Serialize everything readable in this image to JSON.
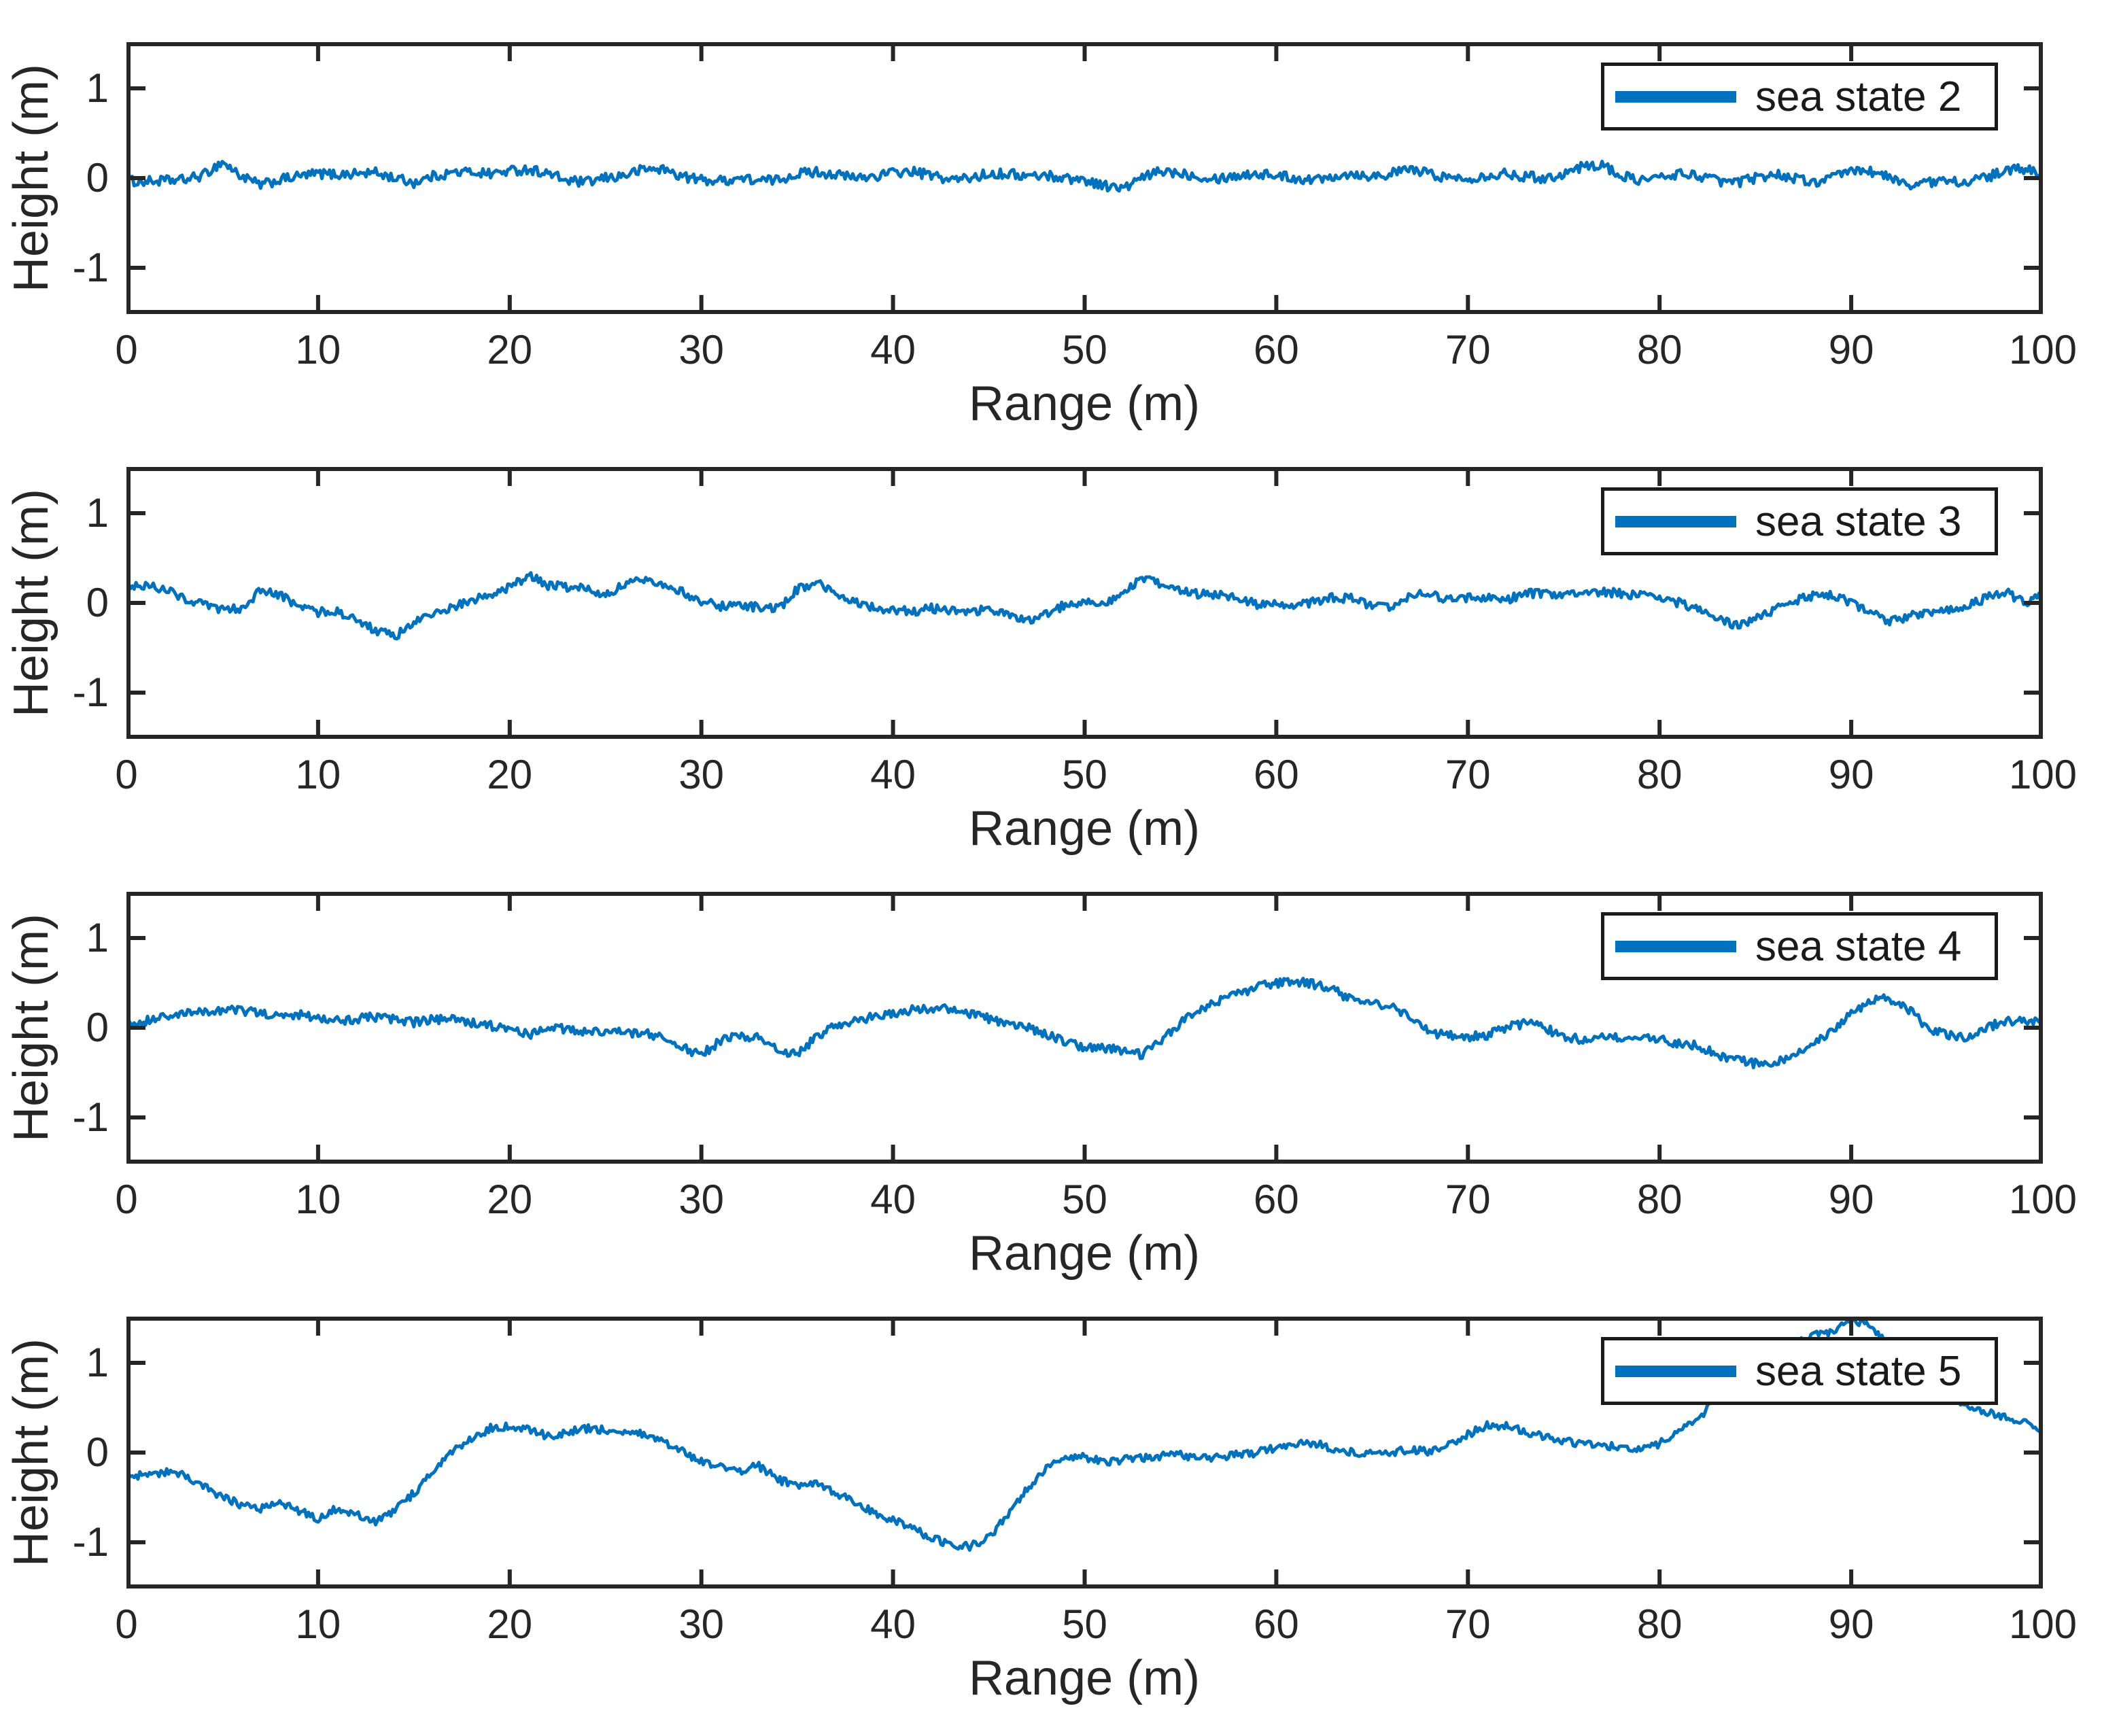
{
  "figure": {
    "background": "#ffffff"
  },
  "style": {
    "curve_color": "#0072BD",
    "axis_color": "#262626",
    "tick_label_color": "#262626",
    "axis_label_color": "#262626",
    "legend_text_color": "#1a1a1a",
    "legend_background": "#ffffff"
  },
  "chart_data": [
    {
      "type": "line",
      "xlabel": "Range (m)",
      "ylabel": "Height (m)",
      "xlim": [
        0,
        100
      ],
      "ylim": [
        -1.52,
        1.52
      ],
      "xticks": [
        0,
        10,
        20,
        30,
        40,
        50,
        60,
        70,
        80,
        90,
        100
      ],
      "yticks": [
        -1,
        0,
        1
      ],
      "grid": false,
      "legend_label": "sea state 2",
      "legend_position": "top-right",
      "series": [
        {
          "name": "sea state 2",
          "color": "#0072BD",
          "x_start": 0,
          "x_step": 1,
          "noise_amplitude": 0.055,
          "values": [
            -0.03,
            -0.04,
            -0.03,
            -0.02,
            0.03,
            0.18,
            0.02,
            -0.08,
            -0.02,
            0.02,
            0.05,
            0.04,
            0.05,
            0.06,
            0.0,
            -0.05,
            0.02,
            0.06,
            0.07,
            0.05,
            0.08,
            0.1,
            0.05,
            -0.03,
            -0.05,
            0.0,
            0.03,
            0.1,
            0.1,
            0.02,
            -0.02,
            -0.03,
            0.0,
            -0.03,
            -0.02,
            0.05,
            0.07,
            0.04,
            0.0,
            0.02,
            0.06,
            0.07,
            0.03,
            -0.02,
            0.0,
            0.05,
            0.05,
            0.02,
            0.03,
            0.0,
            -0.02,
            -0.08,
            -0.12,
            0.0,
            0.08,
            0.06,
            0.02,
            0.0,
            0.03,
            0.05,
            0.03,
            0.0,
            -0.02,
            0.03,
            0.05,
            0.02,
            0.05,
            0.1,
            0.05,
            0.0,
            0.0,
            0.03,
            0.05,
            0.02,
            0.0,
            0.05,
            0.13,
            0.15,
            0.02,
            -0.02,
            0.0,
            0.05,
            0.03,
            -0.03,
            -0.05,
            0.0,
            0.05,
            0.0,
            -0.05,
            0.0,
            0.08,
            0.08,
            0.0,
            -0.07,
            -0.05,
            -0.03,
            -0.04,
            0.0,
            0.08,
            0.1,
            0.05
          ]
        }
      ]
    },
    {
      "type": "line",
      "xlabel": "Range (m)",
      "ylabel": "Height (m)",
      "xlim": [
        0,
        100
      ],
      "ylim": [
        -1.52,
        1.52
      ],
      "xticks": [
        0,
        10,
        20,
        30,
        40,
        50,
        60,
        70,
        80,
        90,
        100
      ],
      "yticks": [
        -1,
        0,
        1
      ],
      "grid": false,
      "legend_label": "sea state 3",
      "legend_position": "top-right",
      "series": [
        {
          "name": "sea state 3",
          "color": "#0072BD",
          "x_start": 0,
          "x_step": 1,
          "noise_amplitude": 0.05,
          "values": [
            0.2,
            0.19,
            0.16,
            0.05,
            -0.02,
            -0.08,
            -0.06,
            0.14,
            0.08,
            -0.03,
            -0.1,
            -0.09,
            -0.2,
            -0.3,
            -0.38,
            -0.22,
            -0.12,
            -0.05,
            0.02,
            0.1,
            0.17,
            0.3,
            0.2,
            0.17,
            0.16,
            0.1,
            0.2,
            0.26,
            0.22,
            0.12,
            0.02,
            -0.04,
            -0.02,
            -0.05,
            -0.07,
            0.15,
            0.22,
            0.1,
            0.0,
            -0.05,
            -0.08,
            -0.1,
            -0.06,
            -0.08,
            -0.1,
            -0.07,
            -0.13,
            -0.2,
            -0.12,
            -0.02,
            0.02,
            0.0,
            0.1,
            0.27,
            0.2,
            0.12,
            0.1,
            0.1,
            0.05,
            -0.02,
            0.0,
            -0.04,
            0.02,
            0.06,
            0.05,
            -0.05,
            -0.06,
            0.08,
            0.1,
            0.04,
            0.05,
            0.06,
            0.04,
            0.1,
            0.11,
            0.1,
            0.09,
            0.13,
            0.1,
            0.08,
            0.05,
            0.0,
            -0.08,
            -0.18,
            -0.25,
            -0.18,
            -0.08,
            0.02,
            0.08,
            0.1,
            0.0,
            -0.12,
            -0.2,
            -0.15,
            -0.12,
            -0.08,
            -0.04,
            0.05,
            0.13,
            0.0,
            0.1
          ]
        }
      ]
    },
    {
      "type": "line",
      "xlabel": "Range (m)",
      "ylabel": "Height (m)",
      "xlim": [
        0,
        100
      ],
      "ylim": [
        -1.52,
        1.52
      ],
      "xticks": [
        0,
        10,
        20,
        30,
        40,
        50,
        60,
        70,
        80,
        90,
        100
      ],
      "yticks": [
        -1,
        0,
        1
      ],
      "grid": false,
      "legend_label": "sea state 4",
      "legend_position": "top-right",
      "series": [
        {
          "name": "sea state 4",
          "color": "#0072BD",
          "x_start": 0,
          "x_step": 1,
          "noise_amplitude": 0.05,
          "values": [
            0.05,
            0.08,
            0.12,
            0.15,
            0.18,
            0.2,
            0.19,
            0.16,
            0.12,
            0.15,
            0.12,
            0.08,
            0.1,
            0.12,
            0.09,
            0.06,
            0.09,
            0.09,
            0.06,
            0.02,
            -0.02,
            -0.08,
            0.02,
            -0.02,
            -0.05,
            -0.04,
            -0.05,
            -0.06,
            -0.12,
            -0.22,
            -0.3,
            -0.15,
            -0.08,
            -0.12,
            -0.25,
            -0.3,
            -0.1,
            0.02,
            0.08,
            0.12,
            0.15,
            0.2,
            0.22,
            0.2,
            0.16,
            0.1,
            0.05,
            0.0,
            -0.08,
            -0.15,
            -0.22,
            -0.22,
            -0.25,
            -0.3,
            -0.15,
            0.05,
            0.2,
            0.3,
            0.38,
            0.45,
            0.5,
            0.52,
            0.48,
            0.42,
            0.3,
            0.26,
            0.25,
            0.12,
            -0.05,
            -0.09,
            -0.1,
            -0.08,
            0.0,
            0.05,
            0.0,
            -0.1,
            -0.13,
            -0.1,
            -0.12,
            -0.11,
            -0.12,
            -0.18,
            -0.2,
            -0.3,
            -0.36,
            -0.4,
            -0.4,
            -0.32,
            -0.18,
            -0.02,
            0.15,
            0.3,
            0.33,
            0.2,
            0.0,
            -0.08,
            -0.1,
            0.0,
            0.07,
            0.08,
            0.09
          ]
        }
      ]
    },
    {
      "type": "line",
      "xlabel": "Range (m)",
      "ylabel": "Height (m)",
      "xlim": [
        0,
        100
      ],
      "ylim": [
        -1.52,
        1.52
      ],
      "xticks": [
        0,
        10,
        20,
        30,
        40,
        50,
        60,
        70,
        80,
        90,
        100
      ],
      "yticks": [
        -1,
        0,
        1
      ],
      "grid": false,
      "legend_label": "sea state 5",
      "legend_position": "top-right",
      "series": [
        {
          "name": "sea state 5",
          "color": "#0072BD",
          "x_start": 0,
          "x_step": 1,
          "noise_amplitude": 0.045,
          "values": [
            -0.28,
            -0.25,
            -0.22,
            -0.26,
            -0.38,
            -0.5,
            -0.58,
            -0.62,
            -0.55,
            -0.65,
            -0.73,
            -0.62,
            -0.68,
            -0.78,
            -0.65,
            -0.45,
            -0.2,
            0.0,
            0.15,
            0.27,
            0.29,
            0.26,
            0.18,
            0.22,
            0.27,
            0.25,
            0.22,
            0.2,
            0.12,
            0.02,
            -0.1,
            -0.16,
            -0.2,
            -0.15,
            -0.3,
            -0.37,
            -0.32,
            -0.45,
            -0.55,
            -0.67,
            -0.75,
            -0.85,
            -0.95,
            -1.02,
            -1.05,
            -0.95,
            -0.7,
            -0.4,
            -0.18,
            -0.05,
            -0.05,
            -0.1,
            -0.08,
            -0.06,
            -0.04,
            -0.03,
            -0.06,
            -0.05,
            -0.02,
            0.0,
            0.06,
            0.09,
            0.1,
            0.05,
            0.0,
            -0.02,
            0.0,
            0.04,
            0.0,
            0.1,
            0.2,
            0.3,
            0.3,
            0.24,
            0.17,
            0.13,
            0.1,
            0.08,
            0.06,
            0.02,
            0.1,
            0.22,
            0.38,
            0.6,
            0.8,
            1.0,
            1.15,
            1.2,
            1.3,
            1.35,
            1.5,
            1.4,
            1.2,
            0.95,
            0.8,
            0.65,
            0.5,
            0.45,
            0.4,
            0.35,
            0.25
          ]
        }
      ]
    }
  ]
}
